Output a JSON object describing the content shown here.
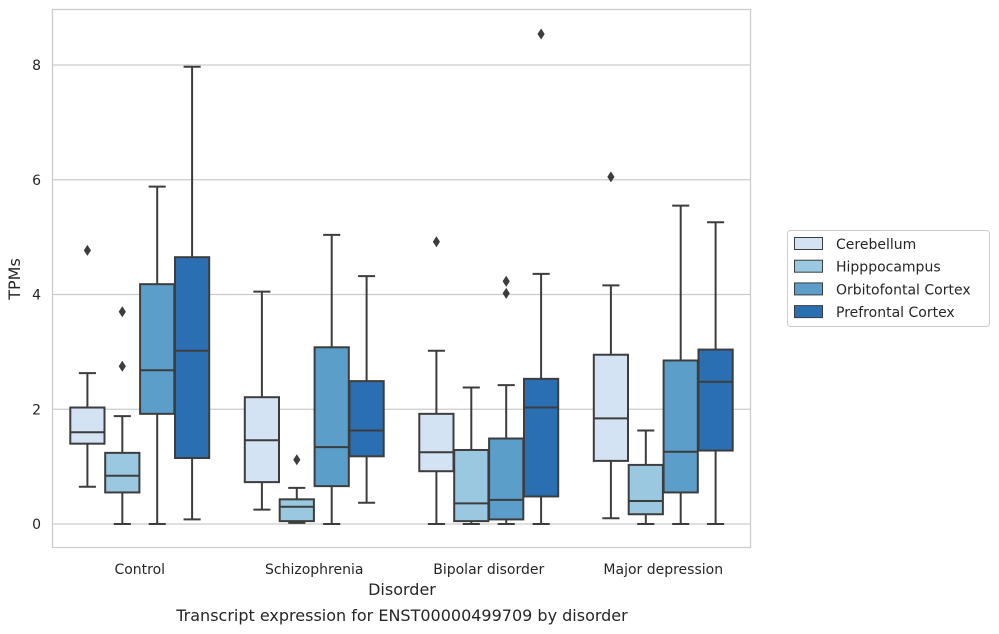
{
  "caption": "Transcript expression for ENST00000499709 by disorder",
  "chart_data": {
    "type": "box",
    "title": "",
    "xlabel": "Disorder",
    "ylabel": "TPMs",
    "ylim": [
      -0.4,
      9.0
    ],
    "yticks": [
      0,
      2,
      4,
      6,
      8
    ],
    "ytick_labels": [
      "0",
      "2",
      "4",
      "6",
      "8"
    ],
    "grid": "horizontal",
    "legend_position": "right",
    "categories": [
      "Control",
      "Schizophrenia",
      "Bipolar disorder",
      "Major depression"
    ],
    "series": [
      {
        "name": "Cerebellum",
        "color": "#d3e3f3",
        "boxes": [
          {
            "whislo": 0.65,
            "q1": 1.4,
            "med": 1.6,
            "q3": 2.03,
            "whishi": 2.63,
            "fliers": [
              4.77
            ]
          },
          {
            "whislo": 0.25,
            "q1": 0.73,
            "med": 1.46,
            "q3": 2.21,
            "whishi": 4.05,
            "fliers": []
          },
          {
            "whislo": 0.0,
            "q1": 0.92,
            "med": 1.25,
            "q3": 1.92,
            "whishi": 3.02,
            "fliers": [
              4.92
            ]
          },
          {
            "whislo": 0.1,
            "q1": 1.1,
            "med": 1.84,
            "q3": 2.95,
            "whishi": 4.16,
            "fliers": [
              6.05
            ]
          }
        ]
      },
      {
        "name": "Hipppocampus",
        "color": "#9ac8e0",
        "boxes": [
          {
            "whislo": 0.0,
            "q1": 0.55,
            "med": 0.84,
            "q3": 1.24,
            "whishi": 1.88,
            "fliers": [
              2.75,
              3.7
            ]
          },
          {
            "whislo": 0.02,
            "q1": 0.05,
            "med": 0.3,
            "q3": 0.43,
            "whishi": 0.63,
            "fliers": [
              1.12
            ]
          },
          {
            "whislo": 0.0,
            "q1": 0.05,
            "med": 0.36,
            "q3": 1.29,
            "whishi": 2.38,
            "fliers": []
          },
          {
            "whislo": 0.0,
            "q1": 0.17,
            "med": 0.4,
            "q3": 1.03,
            "whishi": 1.63,
            "fliers": []
          }
        ]
      },
      {
        "name": "Orbitofontal Cortex",
        "color": "#5a9ec9",
        "boxes": [
          {
            "whislo": 0.0,
            "q1": 1.92,
            "med": 2.68,
            "q3": 4.18,
            "whishi": 5.88,
            "fliers": []
          },
          {
            "whislo": 0.0,
            "q1": 0.66,
            "med": 1.34,
            "q3": 3.08,
            "whishi": 5.04,
            "fliers": []
          },
          {
            "whislo": 0.0,
            "q1": 0.08,
            "med": 0.42,
            "q3": 1.49,
            "whishi": 2.42,
            "fliers": [
              4.02,
              4.23
            ]
          },
          {
            "whislo": 0.0,
            "q1": 0.55,
            "med": 1.26,
            "q3": 2.85,
            "whishi": 5.55,
            "fliers": []
          }
        ]
      },
      {
        "name": "Prefrontal Cortex",
        "color": "#2b6fb3",
        "boxes": [
          {
            "whislo": 0.08,
            "q1": 1.15,
            "med": 3.02,
            "q3": 4.65,
            "whishi": 7.97,
            "fliers": []
          },
          {
            "whislo": 0.37,
            "q1": 1.18,
            "med": 1.63,
            "q3": 2.49,
            "whishi": 4.32,
            "fliers": []
          },
          {
            "whislo": 0.0,
            "q1": 0.48,
            "med": 2.03,
            "q3": 2.53,
            "whishi": 4.36,
            "fliers": [
              8.54
            ]
          },
          {
            "whislo": 0.0,
            "q1": 1.28,
            "med": 2.48,
            "q3": 3.04,
            "whishi": 5.26,
            "fliers": []
          }
        ]
      }
    ]
  }
}
